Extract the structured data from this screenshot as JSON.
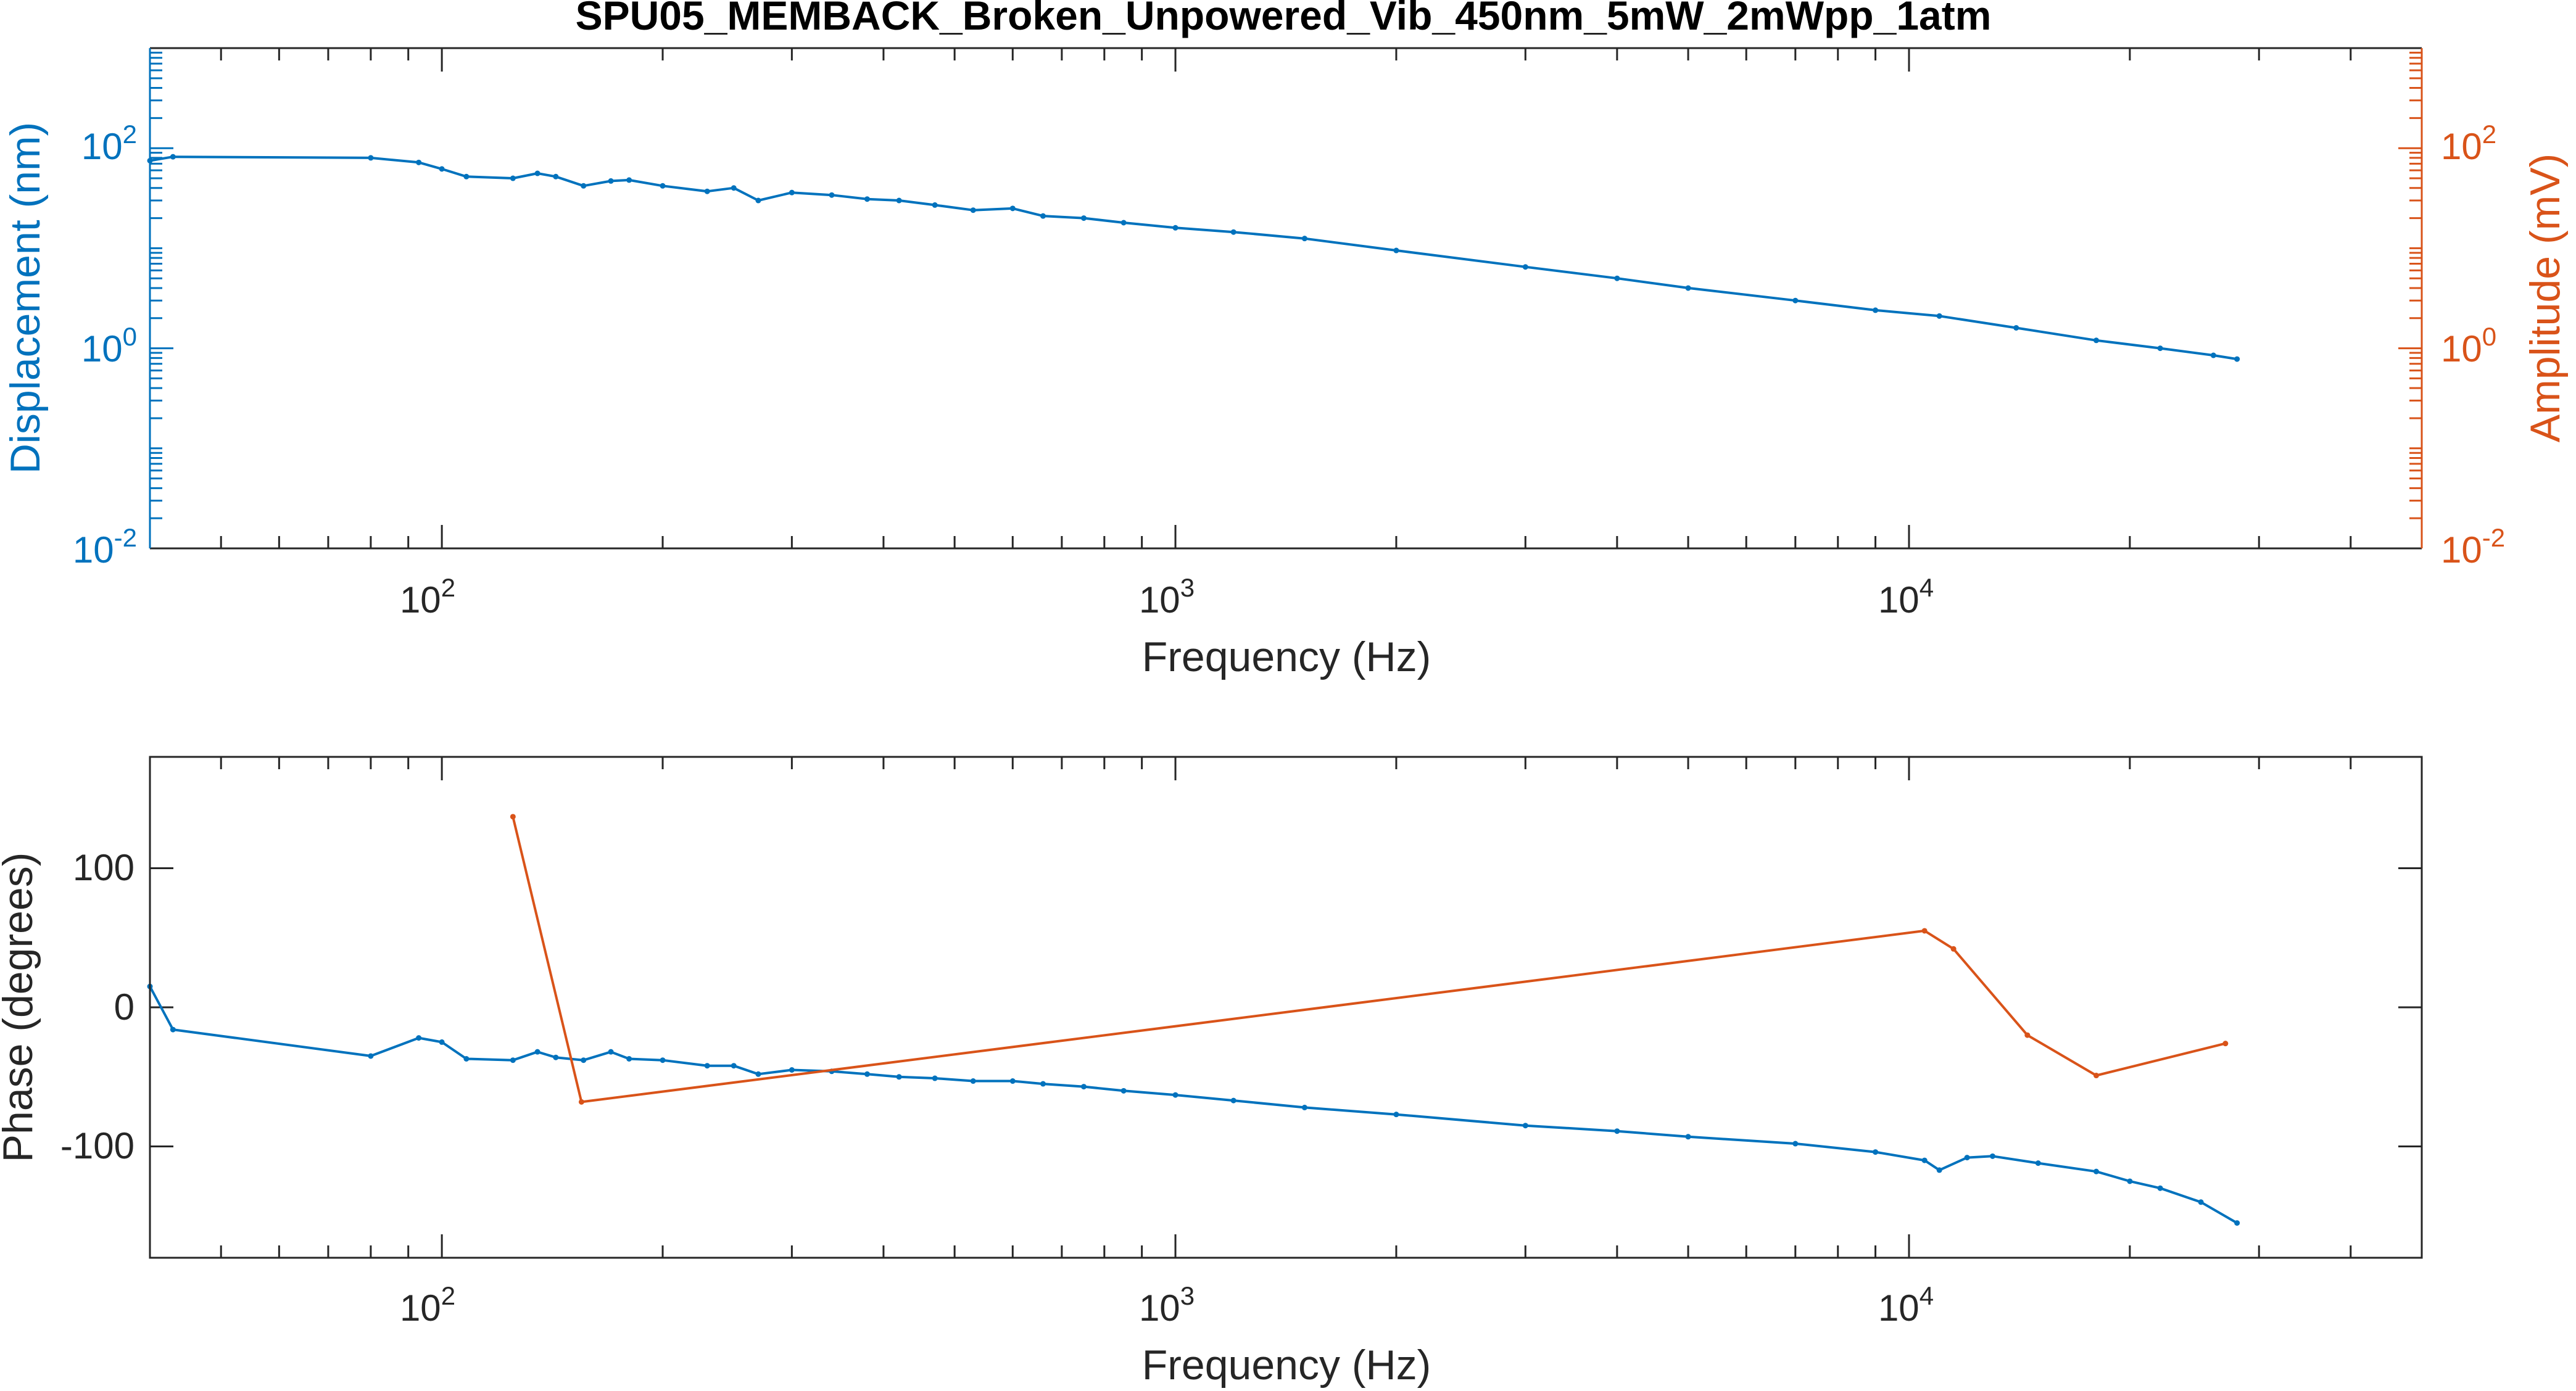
{
  "figure": {
    "title": "SPU05_MEMBACK_Broken_Unpowered_Vib_450nm_5mW_2mWpp_1atm"
  },
  "colors": {
    "blue": "#0072BD",
    "orange": "#D95319",
    "axis": "#262626",
    "background": "#FFFFFF"
  },
  "chart_data": [
    {
      "type": "line",
      "name": "magnitude",
      "xlabel": "Frequency (Hz)",
      "ylabel_left": "Displacement (nm)",
      "ylabel_right": "Amplitude (mV)",
      "xscale": "log",
      "yscale": "log",
      "xlim": [
        40,
        50000
      ],
      "ylim": [
        0.01,
        1000
      ],
      "xticks": [
        {
          "base": "10",
          "exp": "2",
          "value": 100
        },
        {
          "base": "10",
          "exp": "3",
          "value": 1000
        },
        {
          "base": "10",
          "exp": "4",
          "value": 10000
        }
      ],
      "yticks_left": [
        {
          "base": "10",
          "exp": "-2",
          "value": 0.01
        },
        {
          "base": "10",
          "exp": "0",
          "value": 1
        },
        {
          "base": "10",
          "exp": "2",
          "value": 100
        }
      ],
      "yticks_right": [
        {
          "base": "10",
          "exp": "-2",
          "value": 0.01
        },
        {
          "base": "10",
          "exp": "0",
          "value": 1
        },
        {
          "base": "10",
          "exp": "2",
          "value": 100
        }
      ],
      "grid": false,
      "series": [
        {
          "axis": "left",
          "color": "#0072BD",
          "x": [
            40,
            43,
            80,
            93,
            100,
            108,
            125,
            135,
            143,
            156,
            170,
            180,
            200,
            230,
            250,
            270,
            300,
            340,
            380,
            420,
            470,
            530,
            600,
            660,
            750,
            850,
            1000,
            1200,
            1500,
            2000,
            3000,
            4000,
            5000,
            7000,
            9000,
            11000,
            14000,
            18000,
            22000,
            26000,
            28000
          ],
          "y": [
            75,
            82,
            80,
            72,
            62,
            52,
            50,
            56,
            52,
            42,
            47,
            48,
            42,
            37,
            40,
            30,
            36,
            34,
            31,
            30,
            27,
            24,
            25,
            21,
            20,
            18,
            16,
            14.5,
            12.5,
            9.5,
            6.5,
            5,
            4,
            3,
            2.4,
            2.1,
            1.6,
            1.2,
            1.0,
            0.85,
            0.78
          ]
        }
      ]
    },
    {
      "type": "line",
      "name": "phase",
      "xlabel": "Frequency (Hz)",
      "ylabel": "Phase (degrees)",
      "xscale": "log",
      "xlim": [
        40,
        50000
      ],
      "ylim": [
        -180,
        180
      ],
      "xticks": [
        {
          "base": "10",
          "exp": "2",
          "value": 100
        },
        {
          "base": "10",
          "exp": "3",
          "value": 1000
        },
        {
          "base": "10",
          "exp": "4",
          "value": 10000
        }
      ],
      "yticks": [
        {
          "label": "100",
          "value": 100
        },
        {
          "label": "0",
          "value": 0
        },
        {
          "label": "-100",
          "value": -100
        }
      ],
      "grid": false,
      "series": [
        {
          "color": "#0072BD",
          "x": [
            40,
            43,
            80,
            93,
            100,
            108,
            125,
            135,
            143,
            156,
            170,
            180,
            200,
            230,
            250,
            270,
            300,
            340,
            380,
            420,
            470,
            530,
            600,
            660,
            750,
            850,
            1000,
            1200,
            1500,
            2000,
            3000,
            4000,
            5000,
            7000,
            9000,
            10500,
            11000,
            12000,
            13000,
            15000,
            18000,
            20000,
            22000,
            25000,
            28000
          ],
          "y": [
            15,
            -16,
            -35,
            -22,
            -25,
            -37,
            -38,
            -32,
            -36,
            -38,
            -32,
            -37,
            -38,
            -42,
            -42,
            -48,
            -45,
            -46,
            -48,
            -50,
            -51,
            -53,
            -53,
            -55,
            -57,
            -60,
            -63,
            -67,
            -72,
            -77,
            -85,
            -89,
            -93,
            -98,
            -104,
            -110,
            -117,
            -108,
            -107,
            -112,
            -118,
            -125,
            -130,
            -140,
            -155
          ]
        },
        {
          "color": "#D95319",
          "x": [
            125,
            155,
            10500,
            11500,
            14500,
            18000,
            27000
          ],
          "y": [
            137,
            -68,
            55,
            42,
            -20,
            -49,
            -26
          ]
        }
      ]
    }
  ]
}
